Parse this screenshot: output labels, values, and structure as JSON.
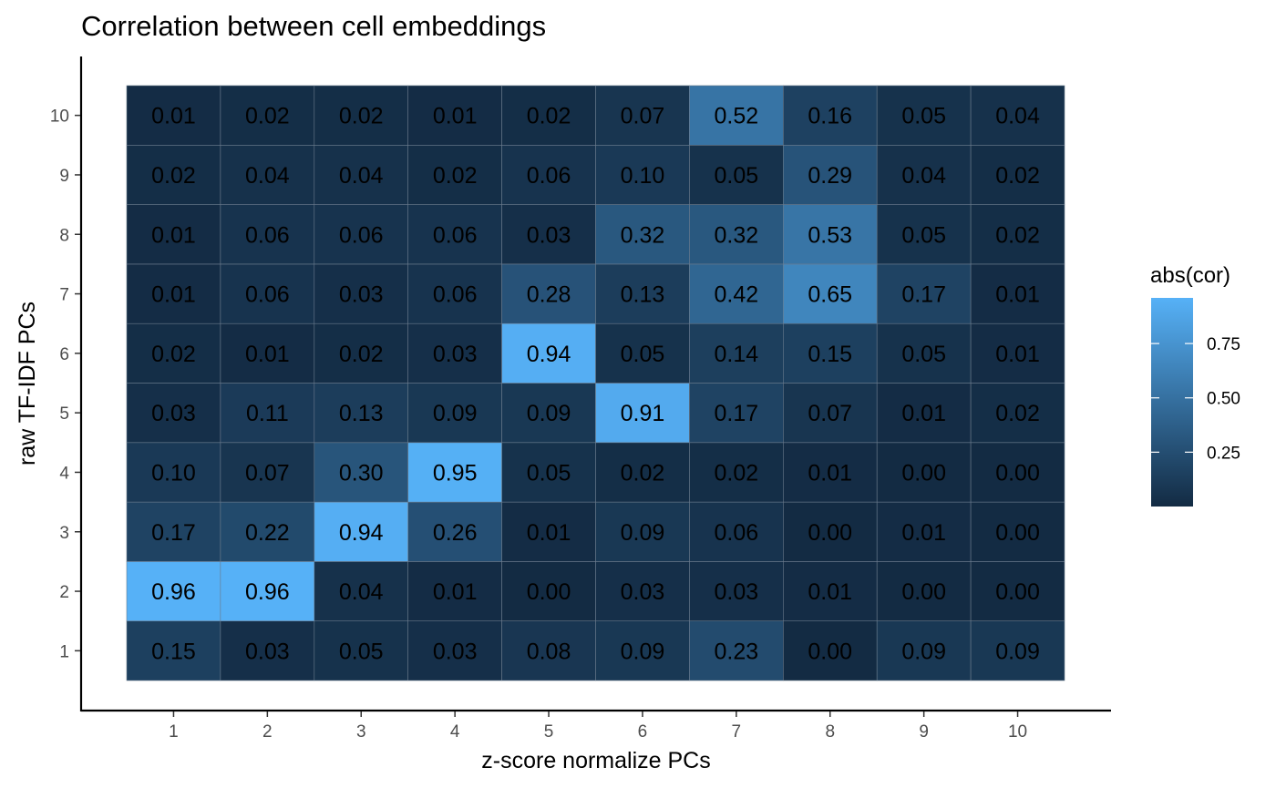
{
  "chart_data": {
    "type": "heatmap",
    "title": "Correlation between cell embeddings",
    "xlabel": "z-score normalize PCs",
    "ylabel": "raw TF-IDF PCs",
    "x_categories": [
      "1",
      "2",
      "3",
      "4",
      "5",
      "6",
      "7",
      "8",
      "9",
      "10"
    ],
    "y_categories": [
      "1",
      "2",
      "3",
      "4",
      "5",
      "6",
      "7",
      "8",
      "9",
      "10"
    ],
    "values": [
      [
        "0.15",
        "0.03",
        "0.05",
        "0.03",
        "0.08",
        "0.09",
        "0.23",
        "0.00",
        "0.09",
        "0.09"
      ],
      [
        "0.96",
        "0.96",
        "0.04",
        "0.01",
        "0.00",
        "0.03",
        "0.03",
        "0.01",
        "0.00",
        "0.00"
      ],
      [
        "0.17",
        "0.22",
        "0.94",
        "0.26",
        "0.01",
        "0.09",
        "0.06",
        "0.00",
        "0.01",
        "0.00"
      ],
      [
        "0.10",
        "0.07",
        "0.30",
        "0.95",
        "0.05",
        "0.02",
        "0.02",
        "0.01",
        "0.00",
        "0.00"
      ],
      [
        "0.03",
        "0.11",
        "0.13",
        "0.09",
        "0.09",
        "0.91",
        "0.17",
        "0.07",
        "0.01",
        "0.02"
      ],
      [
        "0.02",
        "0.01",
        "0.02",
        "0.03",
        "0.94",
        "0.05",
        "0.14",
        "0.15",
        "0.05",
        "0.01"
      ],
      [
        "0.01",
        "0.06",
        "0.03",
        "0.06",
        "0.28",
        "0.13",
        "0.42",
        "0.65",
        "0.17",
        "0.01"
      ],
      [
        "0.01",
        "0.06",
        "0.06",
        "0.06",
        "0.03",
        "0.32",
        "0.32",
        "0.53",
        "0.05",
        "0.02"
      ],
      [
        "0.02",
        "0.04",
        "0.04",
        "0.02",
        "0.06",
        "0.10",
        "0.05",
        "0.29",
        "0.04",
        "0.02"
      ],
      [
        "0.01",
        "0.02",
        "0.02",
        "0.01",
        "0.02",
        "0.07",
        "0.52",
        "0.16",
        "0.05",
        "0.04"
      ]
    ],
    "legend": {
      "title": "abs(cor)",
      "placement": "right",
      "ticks": [
        "0.25",
        "0.50",
        "0.75"
      ],
      "range": [
        0.0,
        0.96
      ],
      "color_low": "#132b43",
      "color_high": "#56b1f7"
    },
    "grid": false
  }
}
